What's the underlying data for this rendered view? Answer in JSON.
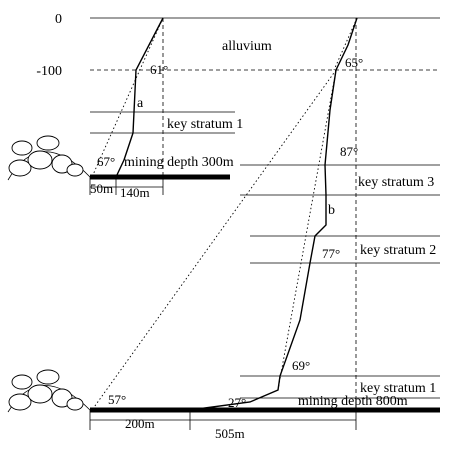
{
  "depth_axis": {
    "surface": "0",
    "alluvium_base": "-100"
  },
  "layers": {
    "alluvium": "alluvium"
  },
  "left_model": {
    "curve_label": "a",
    "key_stratum": "key stratum 1",
    "mining_depth": "mining depth 300m",
    "angles": {
      "top": "61°",
      "bottom": "67°"
    },
    "distances": {
      "inner": "50m",
      "outer": "140m"
    }
  },
  "right_model": {
    "curve_label": "b",
    "key_strata": [
      "key stratum 3",
      "key stratum 2",
      "key stratum 1"
    ],
    "mining_depth": "mining depth 800m",
    "angles": {
      "top": "65°",
      "stratum3": "87°",
      "stratum2": "77°",
      "stratum1": "69°",
      "seam": "27°",
      "dotted": "57°"
    },
    "distances": {
      "inner": "200m",
      "outer": "505m"
    }
  }
}
